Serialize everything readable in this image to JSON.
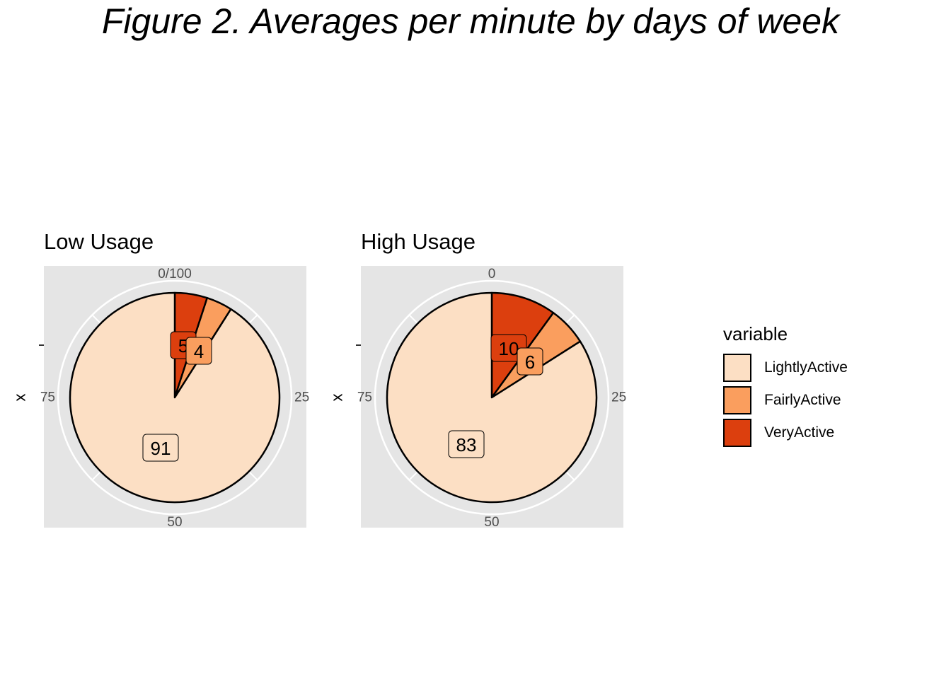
{
  "title": "Figure 2. Averages per minute by days of week",
  "chart_data": [
    {
      "type": "pie",
      "title": "Low Usage",
      "ylabel": "x",
      "ticks": [
        "0/100",
        "25",
        "50",
        "75"
      ],
      "slices": [
        {
          "name": "VeryActive",
          "value": 5
        },
        {
          "name": "FairlyActive",
          "value": 4
        },
        {
          "name": "LightlyActive",
          "value": 91
        }
      ]
    },
    {
      "type": "pie",
      "title": "High Usage",
      "ylabel": "x",
      "ticks": [
        "0",
        "25",
        "50",
        "75"
      ],
      "slices": [
        {
          "name": "VeryActive",
          "value": 10
        },
        {
          "name": "FairlyActive",
          "value": 6
        },
        {
          "name": "LightlyActive",
          "value": 83
        }
      ]
    }
  ],
  "legend": {
    "title": "variable",
    "items": [
      {
        "name": "LightlyActive",
        "color": "#FCDFC4"
      },
      {
        "name": "FairlyActive",
        "color": "#FA9E5E"
      },
      {
        "name": "VeryActive",
        "color": "#DC3F0E"
      }
    ]
  },
  "colors": {
    "panel_background": "#E5E5E5",
    "grid": "#FFFFFF",
    "outline": "#000000"
  }
}
